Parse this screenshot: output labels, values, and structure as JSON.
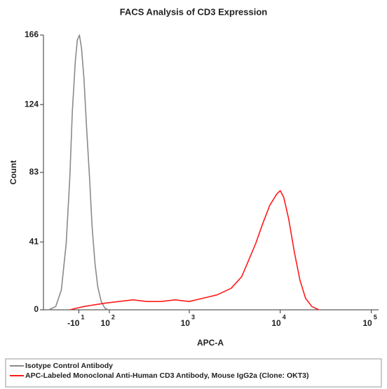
{
  "chart_data": {
    "type": "line",
    "title": "FACS Analysis of CD3 Expression",
    "x_label": "APC-A",
    "y_label": "Count",
    "xscale": "asinh",
    "asinh_cofactor": 133,
    "xlim": [
      -150,
      120000
    ],
    "ylim": [
      0,
      166
    ],
    "xticks": [
      {
        "value": -10,
        "label": "-10",
        "exponent": "1"
      },
      {
        "value": 100,
        "label": "10",
        "exponent": "2"
      },
      {
        "value": 1000,
        "label": "10",
        "exponent": "3"
      },
      {
        "value": 10000,
        "label": "10",
        "exponent": "4"
      },
      {
        "value": 100000,
        "label": "10",
        "exponent": "5"
      }
    ],
    "yticks": [
      0,
      41,
      83,
      124,
      166
    ],
    "legend": "bottom",
    "series": [
      {
        "name": "Isotype Control Antibody",
        "color": "#8a8a8a",
        "x": [
          -125,
          -94,
          -72,
          -54,
          -41,
          -32,
          -22,
          -15,
          -8,
          -1,
          7,
          16,
          26,
          35,
          45,
          55,
          68,
          82,
          96
        ],
        "values": [
          0,
          2,
          12,
          40,
          80,
          120,
          150,
          163,
          166,
          158,
          140,
          110,
          80,
          50,
          28,
          14,
          5,
          1,
          0
        ]
      },
      {
        "name": "APC-Labeled Monoclonal Anti-Human CD3 Antibody, Mouse IgG2a (Clone: OKT3)",
        "color": "#ff1a1a",
        "x": [
          -41,
          -17,
          7,
          43,
          82,
          143,
          224,
          331,
          481,
          694,
          995,
          1419,
          2027,
          2890,
          3770,
          4506,
          5380,
          6420,
          7670,
          9160,
          10000,
          10930,
          12370,
          14260,
          16440,
          18940,
          22240,
          26550
        ],
        "values": [
          0,
          1,
          2,
          3,
          4,
          5,
          6,
          5,
          5,
          6,
          5,
          7,
          9,
          13,
          20,
          30,
          40,
          52,
          63,
          70,
          72,
          68,
          55,
          35,
          18,
          7,
          2,
          0
        ]
      }
    ]
  }
}
